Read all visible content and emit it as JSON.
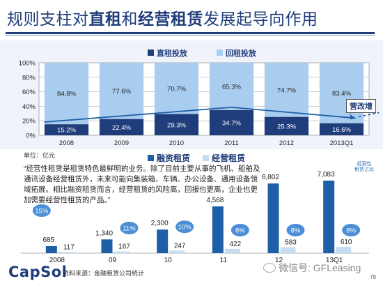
{
  "header": {
    "title_parts": [
      {
        "text": "规则支柱对",
        "em": false
      },
      {
        "text": "直租",
        "em": true
      },
      {
        "text": "和",
        "em": false
      },
      {
        "text": "经营租赁",
        "em": true
      },
      {
        "text": "发展起导向作用",
        "em": false
      }
    ]
  },
  "notes": {
    "unit": "单位：亿元",
    "quote": "“经营性租赁是租赁特色最鲜明的业务。除了目前主要从事的飞机、船舶及通讯设备经营租赁外，未来可能向集装箱、车辆、办公设备、通用设备领域拓展。相比融资租赁而言，经营租赁的风险高，回报也更高，企业也更加需要经营性租赁的产品。”",
    "tag": "营改增",
    "small_note": "经营性\n租赁占比"
  },
  "footer": {
    "logo": "CapSol",
    "source": "资料来源：金融租赁公司统计",
    "page": "79",
    "wechat": "微信号: GFLeasing"
  },
  "colors": {
    "title": "#1f3d7a",
    "dark_bar": "#1f3d7a",
    "light_bar": "#a9cdee",
    "finance_bar": "#1f5fa8",
    "operating_bar": "#c4ddf2",
    "bubble": "#4c8fd6"
  },
  "chart_data": [
    {
      "type": "bar",
      "stacked": true,
      "categories": [
        "2008",
        "2009",
        "2010",
        "2011",
        "2012",
        "2013Q1"
      ],
      "series": [
        {
          "name": "直租投放",
          "values": [
            15.2,
            22.4,
            29.3,
            34.7,
            25.3,
            16.6
          ]
        },
        {
          "name": "回租投放",
          "values": [
            84.8,
            77.6,
            70.7,
            65.3,
            74.7,
            83.4
          ]
        }
      ],
      "data_labels": {
        "dark": [
          "15.2%",
          "22.4%",
          "29.3%",
          "34.7%",
          "25.3%",
          "16.6%"
        ],
        "light": [
          "84.8%",
          "77.6%",
          "70.7%",
          "65.3%",
          "74.7%",
          "83.4%"
        ]
      },
      "yticks": [
        "0%",
        "20%",
        "40%",
        "60%",
        "80%",
        "100%"
      ],
      "ylim": [
        0,
        100
      ],
      "legend": "top"
    },
    {
      "type": "bar",
      "categories": [
        "2008",
        "09",
        "10",
        "11",
        "12",
        "13Q1"
      ],
      "series": [
        {
          "name": "融资租赁",
          "values": [
            685,
            1340,
            2300,
            4568,
            6802,
            7083
          ]
        },
        {
          "name": "经营租赁",
          "values": [
            117,
            167,
            247,
            422,
            583,
            610
          ]
        }
      ],
      "value_labels": {
        "finance": [
          "685",
          "1,340",
          "2,300",
          "4,568",
          "6,802",
          "7,083"
        ],
        "operating": [
          "117",
          "167",
          "247",
          "422",
          "583",
          "610"
        ]
      },
      "share_labels": [
        "15%",
        "11%",
        "10%",
        "8%",
        "8%",
        "8%"
      ],
      "legend": "top"
    }
  ]
}
